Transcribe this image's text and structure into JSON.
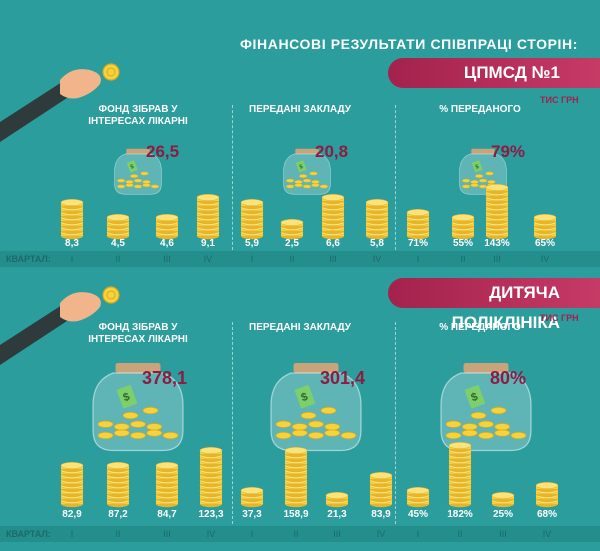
{
  "title": "ФІНАНСОВІ РЕЗУЛЬТАТИ СПІВПРАЦІ СТОРІН:",
  "quarter_label": "КВАРТАЛ:",
  "quarters": [
    "I",
    "II",
    "III",
    "IV"
  ],
  "colors": {
    "background": "#2a9d9c",
    "banner": "#b52d58",
    "coin": "#f6d23c",
    "jar_value": "#8b1c44"
  },
  "chart_data": [
    {
      "type": "bar",
      "title": "ЦПМСД №1",
      "unit": "ТИС ГРН",
      "categories": [
        "I",
        "II",
        "III",
        "IV"
      ],
      "groups": [
        {
          "label": "ФОНД ЗІБРАВ У ІНТЕРЕСАХ ЛІКАРНІ",
          "total": "26,5",
          "values": [
            8.3,
            4.5,
            4.6,
            9.1
          ],
          "labels": [
            "8,3",
            "4,5",
            "4,6",
            "9,1"
          ]
        },
        {
          "label": "ПЕРЕДАНІ ЗАКЛАДУ",
          "total": "20,8",
          "values": [
            5.9,
            2.5,
            6.6,
            5.8
          ],
          "labels": [
            "5,9",
            "2,5",
            "6,6",
            "5,8"
          ]
        },
        {
          "label": "% ПЕРЕДАНОГО",
          "total": "79%",
          "values": [
            71,
            55,
            143,
            65
          ],
          "labels": [
            "71%",
            "55%",
            "143%",
            "65%"
          ]
        }
      ]
    },
    {
      "type": "bar",
      "title": "ДИТЯЧА ПОЛІКЛІНІКА",
      "unit": "ТИС ГРН",
      "categories": [
        "I",
        "II",
        "III",
        "IV"
      ],
      "groups": [
        {
          "label": "ФОНД ЗІБРАВ У ІНТЕРЕСАХ ЛІКАРНІ",
          "total": "378,1",
          "values": [
            82.9,
            87.2,
            84.7,
            123.3
          ],
          "labels": [
            "82,9",
            "87,2",
            "84,7",
            "123,3"
          ]
        },
        {
          "label": "ПЕРЕДАНІ ЗАКЛАДУ",
          "total": "301,4",
          "values": [
            37.3,
            158.9,
            21.3,
            83.9
          ],
          "labels": [
            "37,3",
            "158,9",
            "21,3",
            "83,9"
          ]
        },
        {
          "label": "% ПЕРЕДАНОГО",
          "total": "80%",
          "values": [
            45,
            182,
            25,
            68
          ],
          "labels": [
            "45%",
            "182%",
            "25%",
            "68%"
          ]
        }
      ]
    }
  ]
}
